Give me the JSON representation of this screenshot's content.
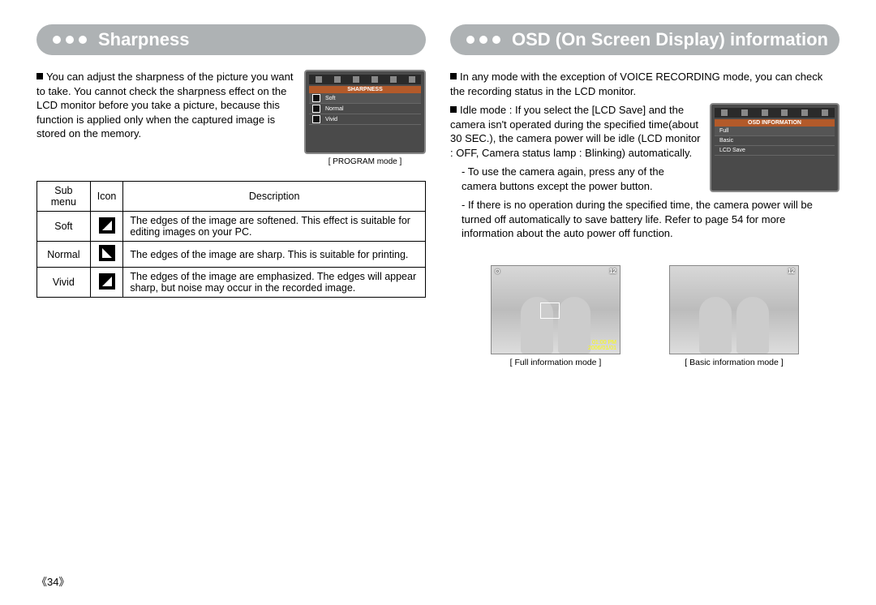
{
  "left": {
    "banner_title": "Sharpness",
    "intro": "You can adjust the sharpness of the picture you want to take. You cannot check the sharpness effect on the LCD monitor before you take a picture, because this function is applied only when the captured image is stored on the memory.",
    "lcd": {
      "header": "SHARPNESS",
      "rows": [
        "Soft",
        "Normal",
        "Vivid"
      ],
      "caption": "[ PROGRAM mode ]"
    },
    "table": {
      "headers": [
        "Sub menu",
        "Icon",
        "Description"
      ],
      "rows": [
        {
          "name": "Soft",
          "icon": "sharp-soft-icon",
          "desc": "The edges of the image are softened.\nThis effect is suitable for editing images on your PC."
        },
        {
          "name": "Normal",
          "icon": "sharp-normal-icon",
          "desc": "The edges of the image are sharp.\nThis is suitable for printing."
        },
        {
          "name": "Vivid",
          "icon": "sharp-vivid-icon",
          "desc": "The edges of the image are emphasized. The edges will appear sharp, but noise may occur in the recorded image."
        }
      ]
    }
  },
  "right": {
    "banner_title": "OSD (On Screen Display) information",
    "p1": "In any mode with the exception of VOICE RECORDING mode, you can check the recording status in the LCD monitor.",
    "p2_lead": "Idle mode :",
    "p2_body": "If you select the [LCD Save] and the camera isn't operated during the specified time(about 30 SEC.), the camera power will be idle (LCD monitor : OFF, Camera status lamp : Blinking) automatically.",
    "p2_dash1": "- To use the camera again, press any of the camera buttons except the power button.",
    "p2_dash2": "- If there is no operation during the specified time, the camera power will be turned off automatically to save battery life. Refer to page 54 for more information about the auto power off function.",
    "osd_box": {
      "header": "OSD INFORMATION",
      "rows": [
        "Full",
        "Basic",
        "LCD Save"
      ]
    },
    "photo_full": {
      "top_right": "12",
      "top_left": "⊙",
      "bot_time": "01:00 PM",
      "bot_date": "2006/01/01",
      "caption": "[ Full information mode ]"
    },
    "photo_basic": {
      "top_right": "12",
      "caption": "[ Basic information mode ]"
    }
  },
  "page_number": "《34》",
  "colors": {
    "banner_bg": "#aeb2b4",
    "banner_text": "#ffffff",
    "lcd_bg": "#4a4a4a",
    "lcd_header_bg": "#b35a2a",
    "text": "#000000",
    "border": "#000000"
  }
}
